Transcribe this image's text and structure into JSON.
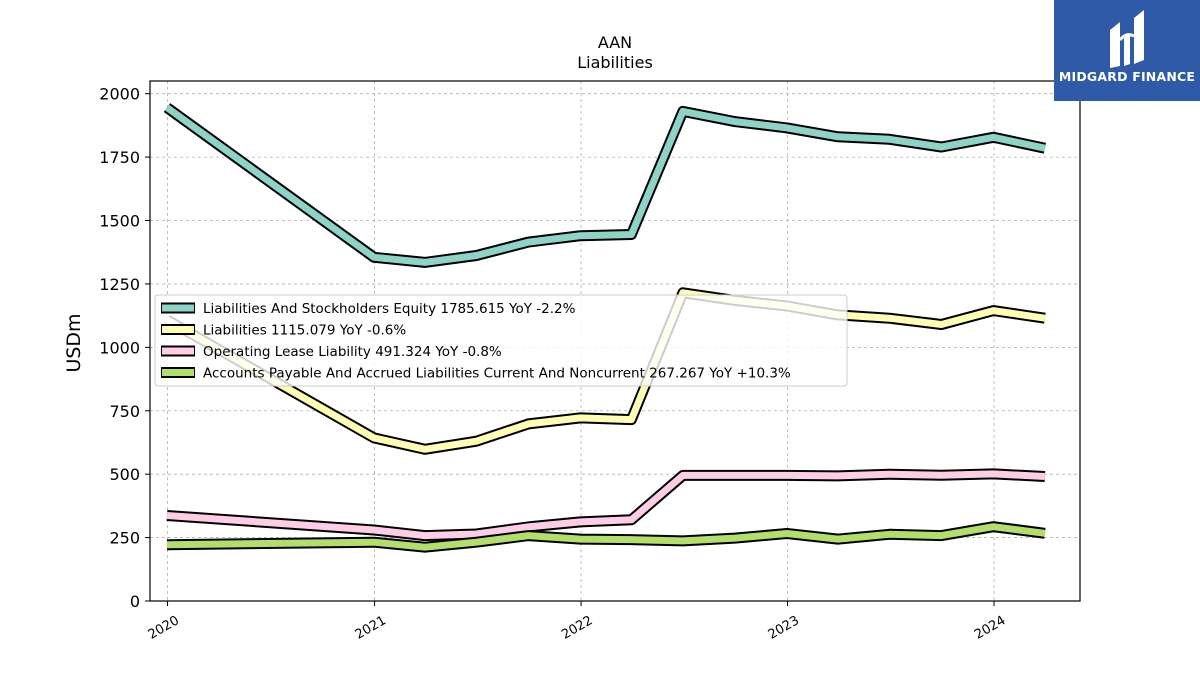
{
  "brand": {
    "name": "MIDGARD FINANCE",
    "color": "#2e5aa8"
  },
  "chart_data": {
    "type": "line",
    "title": "AAN",
    "subtitle": "Liabilities",
    "xlabel": "",
    "ylabel": "USDm",
    "ylim": [
      0,
      2050
    ],
    "yticks": [
      0,
      250,
      500,
      750,
      1000,
      1250,
      1500,
      1750,
      2000
    ],
    "xticks": [
      "2020",
      "2021",
      "2022",
      "2023",
      "2024"
    ],
    "grid": true,
    "legend_position": "center-left",
    "x": [
      "2019-12-31",
      "2020-12-31",
      "2021-03-31",
      "2021-06-30",
      "2021-09-30",
      "2021-12-31",
      "2022-03-31",
      "2022-06-30",
      "2022-09-30",
      "2022-12-31",
      "2023-03-31",
      "2023-06-30",
      "2023-09-30",
      "2023-12-31",
      "2024-03-31"
    ],
    "series": [
      {
        "name": "Liabilities And Stockholders Equity",
        "legend": "Liabilities And Stockholders Equity  1785.615 YoY -2.2%",
        "color": "#8dd3c7",
        "values": [
          1945,
          1355,
          1335,
          1362,
          1415,
          1440,
          1445,
          1930,
          1890,
          1865,
          1830,
          1820,
          1790,
          1828,
          1785
        ]
      },
      {
        "name": "Liabilities",
        "legend": "Liabilities  1115.079 YoY -0.6%",
        "color": "#ffffb3",
        "values": [
          1108,
          643,
          598,
          630,
          698,
          722,
          715,
          1215,
          1185,
          1163,
          1128,
          1115,
          1090,
          1145,
          1115
        ]
      },
      {
        "name": "Operating Lease Liability",
        "legend": "Operating Lease Liability  491.324 YoY -0.8%",
        "color": "#fccde5",
        "values": [
          337,
          280,
          258,
          264,
          292,
          312,
          320,
          495,
          495,
          495,
          493,
          500,
          496,
          501,
          491
        ]
      },
      {
        "name": "Accounts Payable And Accrued Liabilities Current And Noncurrent",
        "legend": "Accounts Payable And Accrued Liabilities Current And Noncurrent  267.267 YoY +10.3%",
        "color": "#b3de69",
        "values": [
          222,
          232,
          212,
          232,
          258,
          244,
          242,
          237,
          248,
          266,
          244,
          263,
          258,
          293,
          267
        ]
      }
    ]
  }
}
